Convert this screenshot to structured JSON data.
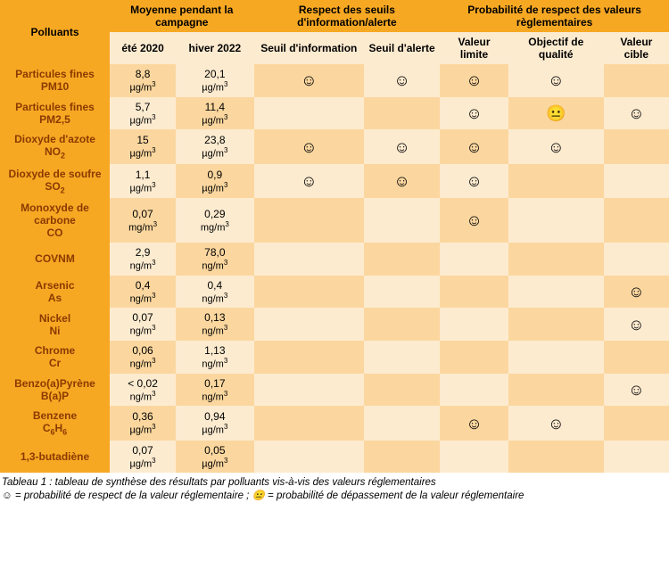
{
  "colors": {
    "header_bg": "#f7a823",
    "subheader_bg": "#fdebd0",
    "row_light": "#fdebd0",
    "row_mid": "#fbd79f",
    "pollutant_text": "#8b3a00"
  },
  "header": {
    "col_pollutants": "Polluants",
    "group_moyenne": "Moyenne pendant la campagne",
    "group_seuils": "Respect des seuils d'information/alerte",
    "group_proba": "Probabilité de respect des valeurs règlementaires",
    "sub_ete": "été 2020",
    "sub_hiver": "hiver 2022",
    "sub_seuil_info": "Seuil d'information",
    "sub_seuil_alerte": "Seuil d'alerte",
    "sub_val_limite": "Valeur limite",
    "sub_objectif": "Objectif de qualité",
    "sub_val_cible": "Valeur cible"
  },
  "faces": {
    "happy": "☺",
    "neutral": "😐"
  },
  "units": {
    "ugm3": "µg/m³",
    "mgm3": "mg/m³",
    "ngm3": "ng/m³"
  },
  "rows": [
    {
      "name": "Particules fines PM10",
      "html": "Particules fines<br>PM10",
      "ete": "8,8",
      "hiver": "20,1",
      "unit": "ugm3",
      "seuil_info": "happy",
      "seuil_alerte": "happy",
      "val_limite": "happy",
      "objectif": "happy",
      "val_cible": ""
    },
    {
      "name": "Particules fines PM2,5",
      "html": "Particules fines<br>PM2,5",
      "ete": "5,7",
      "hiver": "11,4",
      "unit": "ugm3",
      "seuil_info": "",
      "seuil_alerte": "",
      "val_limite": "happy",
      "objectif": "neutral",
      "val_cible": "happy"
    },
    {
      "name": "Dioxyde d'azote NO2",
      "html": "Dioxyde d'azote<br>NO<sub>2</sub>",
      "ete": "15",
      "hiver": "23,8",
      "unit": "ugm3",
      "seuil_info": "happy",
      "seuil_alerte": "happy",
      "val_limite": "happy",
      "objectif": "happy",
      "val_cible": ""
    },
    {
      "name": "Dioxyde de soufre SO2",
      "html": "Dioxyde de soufre<br>SO<sub>2</sub>",
      "ete": "1,1",
      "hiver": "0,9",
      "unit": "ugm3",
      "seuil_info": "happy",
      "seuil_alerte": "happy",
      "val_limite": "happy",
      "objectif": "",
      "val_cible": ""
    },
    {
      "name": "Monoxyde de carbone CO",
      "html": "Monoxyde de<br>carbone<br>CO",
      "ete": "0,07",
      "hiver": "0,29",
      "unit": "mgm3",
      "seuil_info": "",
      "seuil_alerte": "",
      "val_limite": "happy",
      "objectif": "",
      "val_cible": ""
    },
    {
      "name": "COVNM",
      "html": "COVNM",
      "ete": "2,9",
      "hiver": "78,0",
      "unit": "ngm3",
      "seuil_info": "",
      "seuil_alerte": "",
      "val_limite": "",
      "objectif": "",
      "val_cible": ""
    },
    {
      "name": "Arsenic As",
      "html": "Arsenic<br>As",
      "ete": "0,4",
      "hiver": "0,4",
      "unit": "ngm3",
      "seuil_info": "",
      "seuil_alerte": "",
      "val_limite": "",
      "objectif": "",
      "val_cible": "happy"
    },
    {
      "name": "Nickel Ni",
      "html": "Nickel<br>Ni",
      "ete": "0,07",
      "hiver": "0,13",
      "unit": "ngm3",
      "seuil_info": "",
      "seuil_alerte": "",
      "val_limite": "",
      "objectif": "",
      "val_cible": "happy"
    },
    {
      "name": "Chrome Cr",
      "html": "Chrome<br>Cr",
      "ete": "0,06",
      "hiver": "1,13",
      "unit": "ngm3",
      "seuil_info": "",
      "seuil_alerte": "",
      "val_limite": "",
      "objectif": "",
      "val_cible": ""
    },
    {
      "name": "Benzo(a)Pyrène B(a)P",
      "html": "Benzo(a)Pyrène<br>B(a)P",
      "ete": "< 0,02",
      "hiver": "0,17",
      "unit": "ngm3",
      "seuil_info": "",
      "seuil_alerte": "",
      "val_limite": "",
      "objectif": "",
      "val_cible": "happy"
    },
    {
      "name": "Benzene C6H6",
      "html": "Benzene<br>C<sub>6</sub>H<sub>6</sub>",
      "ete": "0,36",
      "hiver": "0,94",
      "unit": "ugm3",
      "seuil_info": "",
      "seuil_alerte": "",
      "val_limite": "happy",
      "objectif": "happy",
      "val_cible": ""
    },
    {
      "name": "1,3-butadiène",
      "html": "1,3-butadiène",
      "ete": "0,07",
      "hiver": "0,05",
      "unit": "ugm3",
      "seuil_info": "",
      "seuil_alerte": "",
      "val_limite": "",
      "objectif": "",
      "val_cible": ""
    }
  ],
  "caption": {
    "line1": "Tableau 1 : tableau de synthèse des résultats par polluants vis-à-vis des valeurs réglementaires",
    "line2": "☺ = probabilité de respect de la valeur réglementaire ; 😐 = probabilité de dépassement de la valeur réglementaire"
  }
}
